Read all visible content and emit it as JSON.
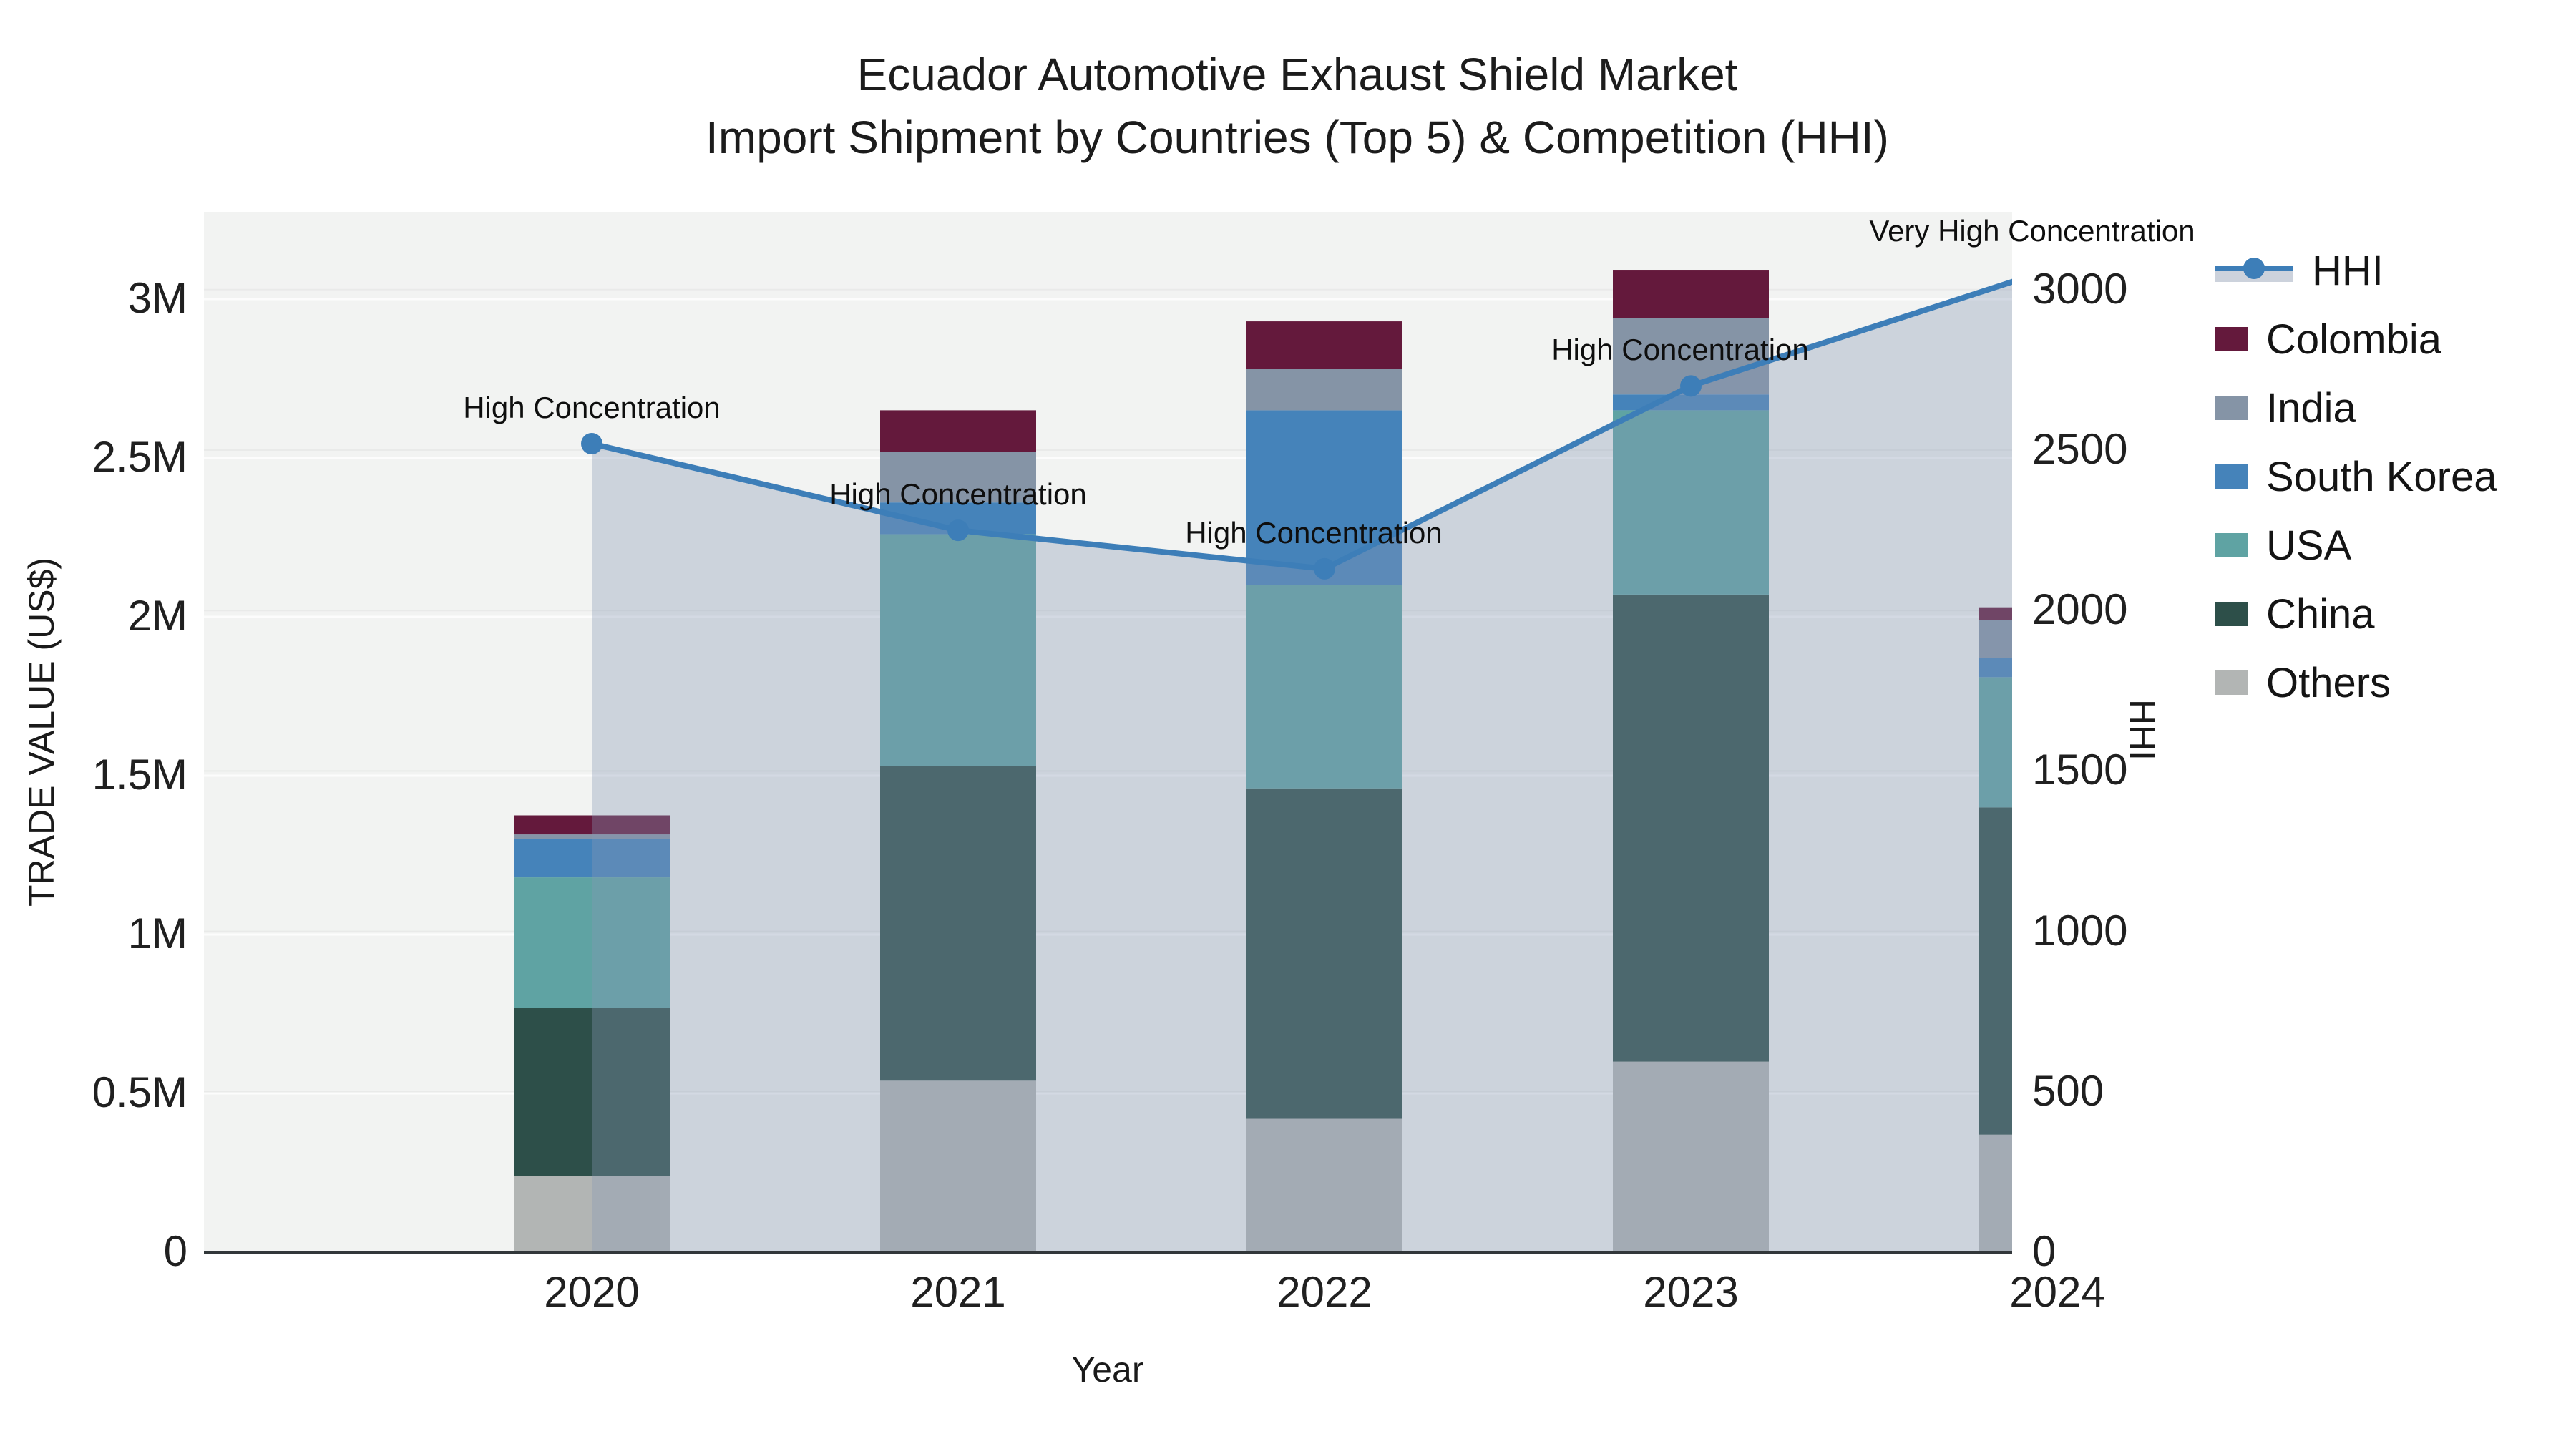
{
  "title": {
    "line1": "Ecuador Automotive Exhaust Shield Market",
    "line2": "Import Shipment by Countries (Top 5) & Competition (HHI)"
  },
  "axes": {
    "x": {
      "label": "Year",
      "ticks": [
        "2020",
        "2021",
        "2022",
        "2023",
        "2024"
      ]
    },
    "y_left": {
      "label": "TRADE VALUE (US$)",
      "ticks": [
        "0",
        "0.5M",
        "1M",
        "1.5M",
        "2M",
        "2.5M",
        "3M"
      ]
    },
    "y_right": {
      "label": "HHI",
      "ticks": [
        "0",
        "500",
        "1000",
        "1500",
        "2000",
        "2500",
        "3000"
      ]
    }
  },
  "legend": {
    "items": [
      {
        "label": "HHI",
        "type": "line",
        "color": "#3d7eb8",
        "band_color": "#ccd2dc"
      },
      {
        "label": "Colombia",
        "type": "patch",
        "color": "#64193c"
      },
      {
        "label": "India",
        "type": "patch",
        "color": "#8594a6"
      },
      {
        "label": "South Korea",
        "type": "patch",
        "color": "#4583ba"
      },
      {
        "label": "USA",
        "type": "patch",
        "color": "#5fa3a3"
      },
      {
        "label": "China",
        "type": "patch",
        "color": "#2d4f49"
      },
      {
        "label": "Others",
        "type": "patch",
        "color": "#b2b5b4"
      }
    ]
  },
  "chart_data": [
    {
      "type": "bar",
      "stacked": true,
      "categories": [
        "2020",
        "2021",
        "2022",
        "2023",
        "2024"
      ],
      "unit": "million US$",
      "title": "Import shipment trade value by country",
      "xlabel": "Year",
      "ylabel": "TRADE VALUE (US$)",
      "ylim": [
        0,
        3.27
      ],
      "grid": true,
      "series": [
        {
          "name": "Others",
          "color": "#b2b5b4",
          "values": [
            0.24,
            0.54,
            0.42,
            0.6,
            0.37
          ]
        },
        {
          "name": "China",
          "color": "#2d4f49",
          "values": [
            0.53,
            0.99,
            1.04,
            1.47,
            1.03
          ]
        },
        {
          "name": "USA",
          "color": "#5fa3a3",
          "values": [
            0.41,
            0.73,
            0.64,
            0.58,
            0.41
          ]
        },
        {
          "name": "South Korea",
          "color": "#4583ba",
          "values": [
            0.12,
            0.1,
            0.55,
            0.05,
            0.06
          ]
        },
        {
          "name": "India",
          "color": "#8594a6",
          "values": [
            0.015,
            0.16,
            0.13,
            0.24,
            0.12
          ]
        },
        {
          "name": "Colombia",
          "color": "#64193c",
          "values": [
            0.06,
            0.13,
            0.15,
            0.15,
            0.04
          ]
        }
      ]
    },
    {
      "type": "line",
      "name": "HHI",
      "color": "#3d7eb8",
      "area_fill": "#8697b4",
      "area_opacity": 0.35,
      "marker": "circle",
      "x": [
        "2020",
        "2021",
        "2022",
        "2023",
        "2024"
      ],
      "values": [
        2520,
        2250,
        2130,
        2700,
        3070
      ],
      "ylabel": "HHI",
      "ylim": [
        0,
        3240
      ],
      "legend_position": "right-outside",
      "annotations": [
        {
          "x": "2020",
          "text": "High Concentration"
        },
        {
          "x": "2021",
          "text": "High Concentration"
        },
        {
          "x": "2022",
          "text": "High Concentration"
        },
        {
          "x": "2023",
          "text": "High Concentration"
        },
        {
          "x": "2024",
          "text": "Very High Concentration"
        }
      ]
    }
  ]
}
